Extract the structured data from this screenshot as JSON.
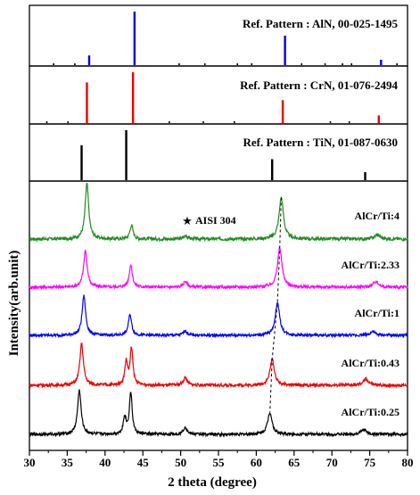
{
  "chart_data": {
    "type": "line",
    "xlabel": "2 theta (degree)",
    "ylabel": "Intensity(arb.unit)",
    "xlim": [
      30,
      80
    ],
    "x_ticks": [
      30,
      35,
      40,
      45,
      50,
      55,
      60,
      65,
      70,
      75,
      80
    ],
    "reference_patterns": [
      {
        "label": "Ref. Pattern : AlN, 00-025-1495",
        "color": "#0000dd",
        "peaks": [
          {
            "x": 33.2,
            "rel": 0.03,
            "color": "#000000"
          },
          {
            "x": 36.0,
            "rel": 0.03,
            "color": "#000000"
          },
          {
            "x": 37.9,
            "rel": 0.18,
            "color": "#0000dd"
          },
          {
            "x": 43.9,
            "rel": 1.0,
            "color": "#0000dd"
          },
          {
            "x": 49.8,
            "rel": 0.03,
            "color": "#000000"
          },
          {
            "x": 53.2,
            "rel": 0.03,
            "color": "#000000"
          },
          {
            "x": 57.5,
            "rel": 0.03,
            "color": "#000000"
          },
          {
            "x": 59.4,
            "rel": 0.03,
            "color": "#000000"
          },
          {
            "x": 63.8,
            "rel": 0.55,
            "color": "#0000dd"
          },
          {
            "x": 66.0,
            "rel": 0.03,
            "color": "#000000"
          },
          {
            "x": 69.1,
            "rel": 0.03,
            "color": "#000000"
          },
          {
            "x": 71.4,
            "rel": 0.03,
            "color": "#000000"
          },
          {
            "x": 72.6,
            "rel": 0.03,
            "color": "#000000"
          },
          {
            "x": 76.5,
            "rel": 0.1,
            "color": "#0000dd"
          },
          {
            "x": 78.6,
            "rel": 0.03,
            "color": "#000000"
          }
        ]
      },
      {
        "label": "Ref. Pattern : CrN, 01-076-2494",
        "color": "#ee0000",
        "peaks": [
          {
            "x": 32.3,
            "rel": 0.03,
            "color": "#000000"
          },
          {
            "x": 35.1,
            "rel": 0.03,
            "color": "#000000"
          },
          {
            "x": 37.6,
            "rel": 0.8,
            "color": "#ee0000"
          },
          {
            "x": 43.7,
            "rel": 1.0,
            "color": "#ee0000"
          },
          {
            "x": 48.5,
            "rel": 0.03,
            "color": "#000000"
          },
          {
            "x": 53.0,
            "rel": 0.03,
            "color": "#000000"
          },
          {
            "x": 57.1,
            "rel": 0.03,
            "color": "#000000"
          },
          {
            "x": 63.5,
            "rel": 0.45,
            "color": "#ee0000"
          },
          {
            "x": 69.8,
            "rel": 0.03,
            "color": "#000000"
          },
          {
            "x": 72.3,
            "rel": 0.03,
            "color": "#000000"
          },
          {
            "x": 76.2,
            "rel": 0.15,
            "color": "#ee0000"
          }
        ]
      },
      {
        "label": "Ref. Pattern : TiN, 01-087-0630",
        "color": "#000000",
        "peaks": [
          {
            "x": 36.9,
            "rel": 0.7,
            "color": "#000000"
          },
          {
            "x": 42.8,
            "rel": 1.0,
            "color": "#000000"
          },
          {
            "x": 62.1,
            "rel": 0.42,
            "color": "#000000"
          },
          {
            "x": 74.4,
            "rel": 0.16,
            "color": "#000000"
          }
        ]
      }
    ],
    "series": [
      {
        "name": "AlCr/Ti:4",
        "color": "#228b22",
        "peaks": [
          {
            "x": 37.6,
            "h": 1.0,
            "w": 0.28
          },
          {
            "x": 43.5,
            "h": 0.25,
            "w": 0.25
          },
          {
            "x": 50.7,
            "h": 0.06,
            "w": 0.3
          },
          {
            "x": 63.3,
            "h": 0.75,
            "w": 0.35
          },
          {
            "x": 76.0,
            "h": 0.08,
            "w": 0.4
          }
        ]
      },
      {
        "name": "AlCr/Ti:2.33",
        "color": "#ff00ff",
        "peaks": [
          {
            "x": 37.4,
            "h": 0.75,
            "w": 0.28
          },
          {
            "x": 43.4,
            "h": 0.45,
            "w": 0.25
          },
          {
            "x": 50.6,
            "h": 0.12,
            "w": 0.3
          },
          {
            "x": 63.1,
            "h": 0.8,
            "w": 0.35
          },
          {
            "x": 75.8,
            "h": 0.12,
            "w": 0.4
          }
        ]
      },
      {
        "name": "AlCr/Ti:1",
        "color": "#0000ff",
        "peaks": [
          {
            "x": 37.2,
            "h": 0.85,
            "w": 0.28
          },
          {
            "x": 43.3,
            "h": 0.45,
            "w": 0.25
          },
          {
            "x": 50.6,
            "h": 0.1,
            "w": 0.3
          },
          {
            "x": 62.8,
            "h": 0.7,
            "w": 0.35
          },
          {
            "x": 75.4,
            "h": 0.08,
            "w": 0.4
          }
        ]
      },
      {
        "name": "AlCr/Ti:0.43",
        "color": "#ee0000",
        "peaks": [
          {
            "x": 36.9,
            "h": 0.8,
            "w": 0.28
          },
          {
            "x": 42.8,
            "h": 0.45,
            "w": 0.22
          },
          {
            "x": 43.5,
            "h": 0.7,
            "w": 0.22
          },
          {
            "x": 50.6,
            "h": 0.15,
            "w": 0.3
          },
          {
            "x": 62.1,
            "h": 0.5,
            "w": 0.35
          },
          {
            "x": 74.5,
            "h": 0.12,
            "w": 0.4
          }
        ]
      },
      {
        "name": "AlCr/Ti:0.25",
        "color": "#000000",
        "peaks": [
          {
            "x": 36.6,
            "h": 0.9,
            "w": 0.28
          },
          {
            "x": 42.6,
            "h": 0.35,
            "w": 0.22
          },
          {
            "x": 43.4,
            "h": 0.85,
            "w": 0.22
          },
          {
            "x": 50.6,
            "h": 0.15,
            "w": 0.3
          },
          {
            "x": 61.8,
            "h": 0.45,
            "w": 0.35
          },
          {
            "x": 74.2,
            "h": 0.1,
            "w": 0.4
          }
        ]
      }
    ],
    "annotations": {
      "substrate_marker": "★",
      "substrate_label": "AISI 304",
      "substrate_peak_x": 50.7
    },
    "guide_line": {
      "style": "dashed",
      "x_points": [
        63.3,
        63.1,
        62.8,
        62.1,
        61.8
      ]
    },
    "grid": false
  }
}
